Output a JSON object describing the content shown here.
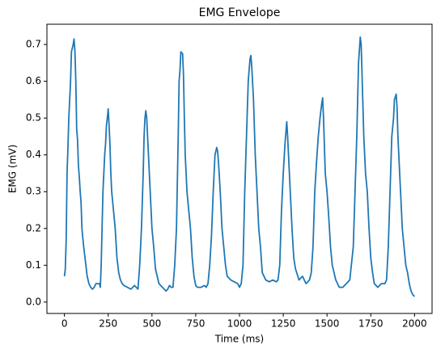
{
  "chart_data": {
    "type": "line",
    "title": "EMG Envelope",
    "xlabel": "Time (ms)",
    "ylabel": "EMG (mV)",
    "color": "#1f77b4",
    "x": [
      0,
      5,
      10,
      15,
      20,
      25,
      30,
      35,
      40,
      50,
      55,
      60,
      65,
      70,
      75,
      80,
      85,
      90,
      95,
      100,
      110,
      120,
      130,
      140,
      150,
      160,
      170,
      180,
      190,
      200,
      205,
      210,
      215,
      220,
      225,
      230,
      235,
      240,
      245,
      250,
      255,
      260,
      265,
      270,
      280,
      290,
      300,
      310,
      320,
      330,
      340,
      360,
      380,
      400,
      410,
      420,
      430,
      440,
      450,
      455,
      460,
      465,
      470,
      475,
      480,
      490,
      500,
      510,
      520,
      530,
      540,
      550,
      560,
      570,
      580,
      590,
      600,
      610,
      620,
      630,
      640,
      650,
      655,
      660,
      665,
      675,
      680,
      685,
      690,
      700,
      710,
      720,
      730,
      740,
      750,
      760,
      780,
      800,
      810,
      820,
      830,
      840,
      850,
      855,
      860,
      870,
      875,
      880,
      890,
      900,
      910,
      920,
      930,
      950,
      970,
      990,
      1000,
      1010,
      1020,
      1030,
      1040,
      1050,
      1060,
      1065,
      1070,
      1080,
      1090,
      1100,
      1110,
      1120,
      1130,
      1150,
      1170,
      1190,
      1210,
      1220,
      1230,
      1240,
      1250,
      1260,
      1270,
      1275,
      1280,
      1290,
      1300,
      1310,
      1320,
      1340,
      1360,
      1380,
      1400,
      1410,
      1420,
      1430,
      1440,
      1450,
      1460,
      1470,
      1475,
      1480,
      1490,
      1500,
      1510,
      1520,
      1530,
      1550,
      1570,
      1590,
      1610,
      1630,
      1650,
      1660,
      1670,
      1680,
      1690,
      1695,
      1700,
      1710,
      1720,
      1730,
      1740,
      1750,
      1760,
      1770,
      1790,
      1810,
      1830,
      1840,
      1850,
      1860,
      1870,
      1880,
      1885,
      1895,
      1900,
      1905,
      1910,
      1920,
      1930,
      1940,
      1950,
      1960,
      1970,
      1980,
      1990,
      2000
    ],
    "values": [
      0.07,
      0.09,
      0.17,
      0.35,
      0.42,
      0.5,
      0.55,
      0.6,
      0.68,
      0.7,
      0.715,
      0.68,
      0.6,
      0.47,
      0.44,
      0.37,
      0.34,
      0.3,
      0.27,
      0.2,
      0.15,
      0.11,
      0.07,
      0.05,
      0.04,
      0.035,
      0.04,
      0.05,
      0.05,
      0.05,
      0.04,
      0.1,
      0.2,
      0.3,
      0.35,
      0.4,
      0.43,
      0.48,
      0.5,
      0.525,
      0.48,
      0.43,
      0.35,
      0.3,
      0.25,
      0.2,
      0.12,
      0.08,
      0.06,
      0.05,
      0.045,
      0.04,
      0.035,
      0.045,
      0.04,
      0.035,
      0.1,
      0.2,
      0.35,
      0.45,
      0.5,
      0.52,
      0.5,
      0.45,
      0.4,
      0.3,
      0.2,
      0.15,
      0.09,
      0.07,
      0.05,
      0.045,
      0.04,
      0.035,
      0.03,
      0.035,
      0.045,
      0.04,
      0.04,
      0.1,
      0.2,
      0.45,
      0.6,
      0.63,
      0.68,
      0.675,
      0.62,
      0.5,
      0.4,
      0.3,
      0.25,
      0.2,
      0.12,
      0.07,
      0.045,
      0.04,
      0.04,
      0.045,
      0.04,
      0.05,
      0.1,
      0.18,
      0.3,
      0.35,
      0.4,
      0.42,
      0.41,
      0.38,
      0.3,
      0.2,
      0.15,
      0.1,
      0.07,
      0.06,
      0.055,
      0.05,
      0.04,
      0.05,
      0.1,
      0.3,
      0.45,
      0.6,
      0.66,
      0.67,
      0.64,
      0.55,
      0.4,
      0.3,
      0.2,
      0.15,
      0.08,
      0.06,
      0.055,
      0.06,
      0.055,
      0.06,
      0.1,
      0.25,
      0.35,
      0.43,
      0.49,
      0.45,
      0.4,
      0.3,
      0.2,
      0.12,
      0.09,
      0.06,
      0.07,
      0.05,
      0.06,
      0.08,
      0.15,
      0.3,
      0.38,
      0.45,
      0.5,
      0.54,
      0.555,
      0.5,
      0.35,
      0.3,
      0.23,
      0.15,
      0.1,
      0.06,
      0.04,
      0.04,
      0.05,
      0.06,
      0.15,
      0.3,
      0.45,
      0.65,
      0.72,
      0.7,
      0.62,
      0.45,
      0.35,
      0.3,
      0.2,
      0.12,
      0.08,
      0.05,
      0.04,
      0.05,
      0.05,
      0.06,
      0.15,
      0.3,
      0.45,
      0.5,
      0.55,
      0.565,
      0.53,
      0.45,
      0.4,
      0.3,
      0.2,
      0.15,
      0.1,
      0.08,
      0.05,
      0.03,
      0.02,
      0.015
    ],
    "xlim": [
      -100,
      2100
    ],
    "ylim": [
      -0.031,
      0.755
    ],
    "xticks": [
      0,
      250,
      500,
      750,
      1000,
      1250,
      1500,
      1750,
      2000
    ],
    "yticks": [
      {
        "value": 0,
        "label": "0.0"
      },
      0.1,
      0.2,
      0.3,
      0.4,
      0.5,
      0.6,
      0.7
    ]
  }
}
